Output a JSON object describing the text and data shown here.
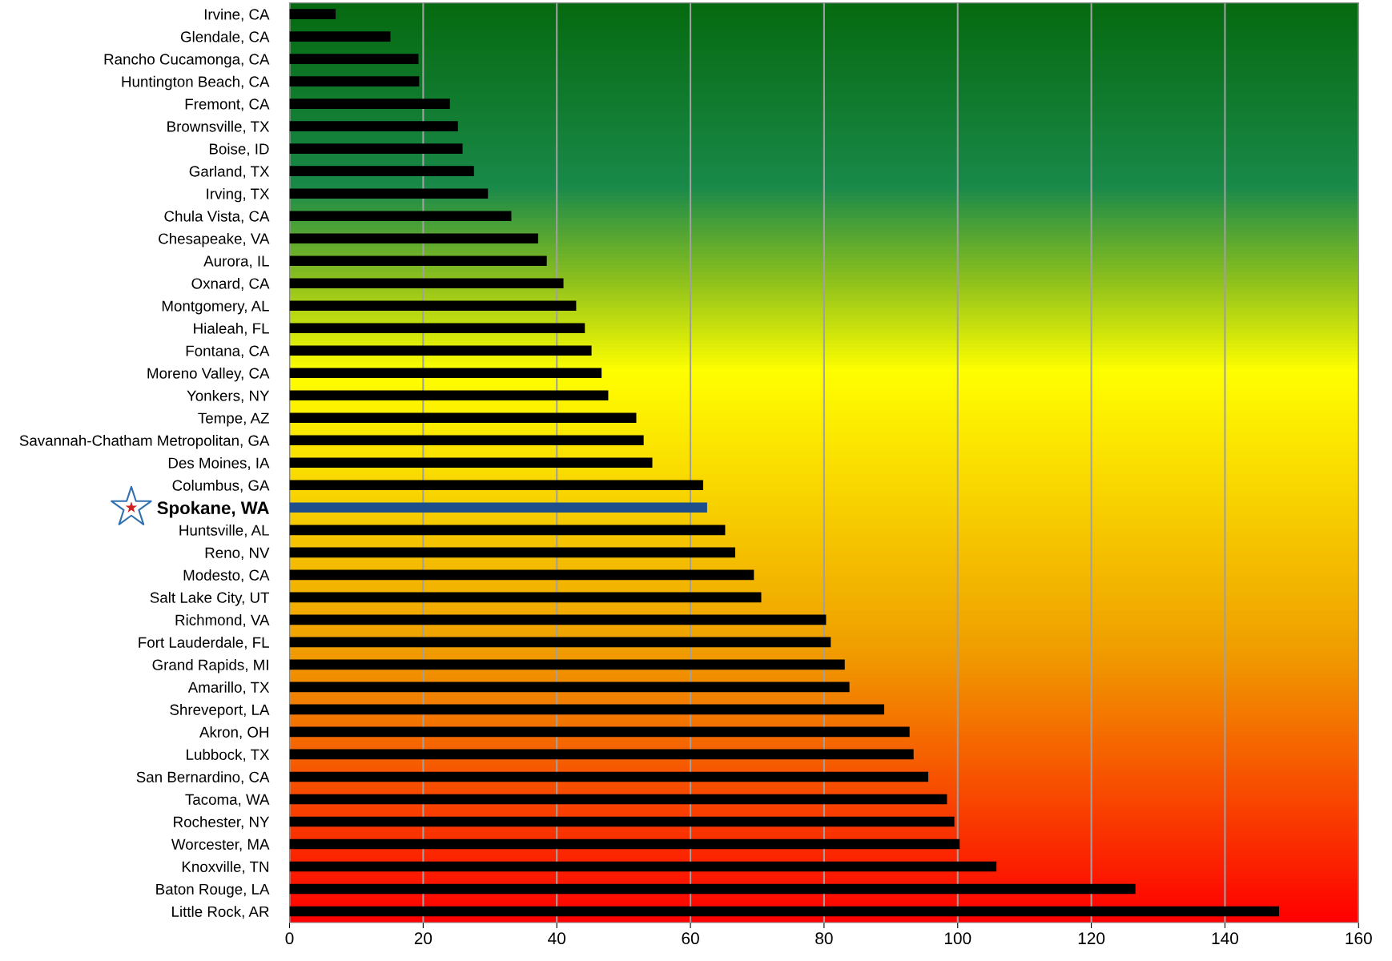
{
  "chart_data": {
    "type": "bar",
    "orientation": "horizontal",
    "categories": [
      "Irvine, CA",
      "Glendale, CA",
      "Rancho Cucamonga, CA",
      "Huntington Beach, CA",
      "Fremont, CA",
      "Brownsville, TX",
      "Boise, ID",
      "Garland, TX",
      "Irving, TX",
      "Chula Vista, CA",
      "Chesapeake, VA",
      "Aurora, IL",
      "Oxnard, CA",
      "Montgomery, AL",
      "Hialeah, FL",
      "Fontana, CA",
      "Moreno Valley, CA",
      "Yonkers, NY",
      "Tempe, AZ",
      "Savannah-Chatham Metropolitan, GA",
      "Des Moines, IA",
      "Columbus, GA",
      "Spokane, WA",
      "Huntsville, AL",
      "Reno, NV",
      "Modesto, CA",
      "Salt Lake City, UT",
      "Richmond, VA",
      "Fort Lauderdale, FL",
      "Grand Rapids, MI",
      "Amarillo, TX",
      "Shreveport, LA",
      "Akron, OH",
      "Lubbock, TX",
      "San Bernardino, CA",
      "Tacoma, WA",
      "Rochester, NY",
      "Worcester, MA",
      "Knoxville, TN",
      "Baton Rouge, LA",
      "Little Rock, AR"
    ],
    "values": [
      6.9,
      15.1,
      19.3,
      19.4,
      24.0,
      25.2,
      25.9,
      27.6,
      29.7,
      33.2,
      37.2,
      38.5,
      41.0,
      42.9,
      44.2,
      45.2,
      46.7,
      47.7,
      51.9,
      53.0,
      54.3,
      61.9,
      62.5,
      65.2,
      66.7,
      69.5,
      70.6,
      80.3,
      81.0,
      83.1,
      83.8,
      89.0,
      92.8,
      93.4,
      95.6,
      98.4,
      99.5,
      100.3,
      105.8,
      126.6,
      148.1
    ],
    "colors": [
      "#000000",
      "#000000",
      "#000000",
      "#000000",
      "#000000",
      "#000000",
      "#000000",
      "#000000",
      "#000000",
      "#000000",
      "#000000",
      "#000000",
      "#000000",
      "#000000",
      "#000000",
      "#000000",
      "#000000",
      "#000000",
      "#000000",
      "#000000",
      "#000000",
      "#000000",
      "#1f4e8c",
      "#000000",
      "#000000",
      "#000000",
      "#000000",
      "#000000",
      "#000000",
      "#000000",
      "#000000",
      "#000000",
      "#000000",
      "#000000",
      "#000000",
      "#000000",
      "#000000",
      "#000000",
      "#000000",
      "#000000",
      "#000000"
    ],
    "xlim": [
      0,
      160
    ],
    "xticks": [
      0,
      20,
      40,
      60,
      80,
      100,
      120,
      140,
      160
    ],
    "grid": "x"
  }
}
